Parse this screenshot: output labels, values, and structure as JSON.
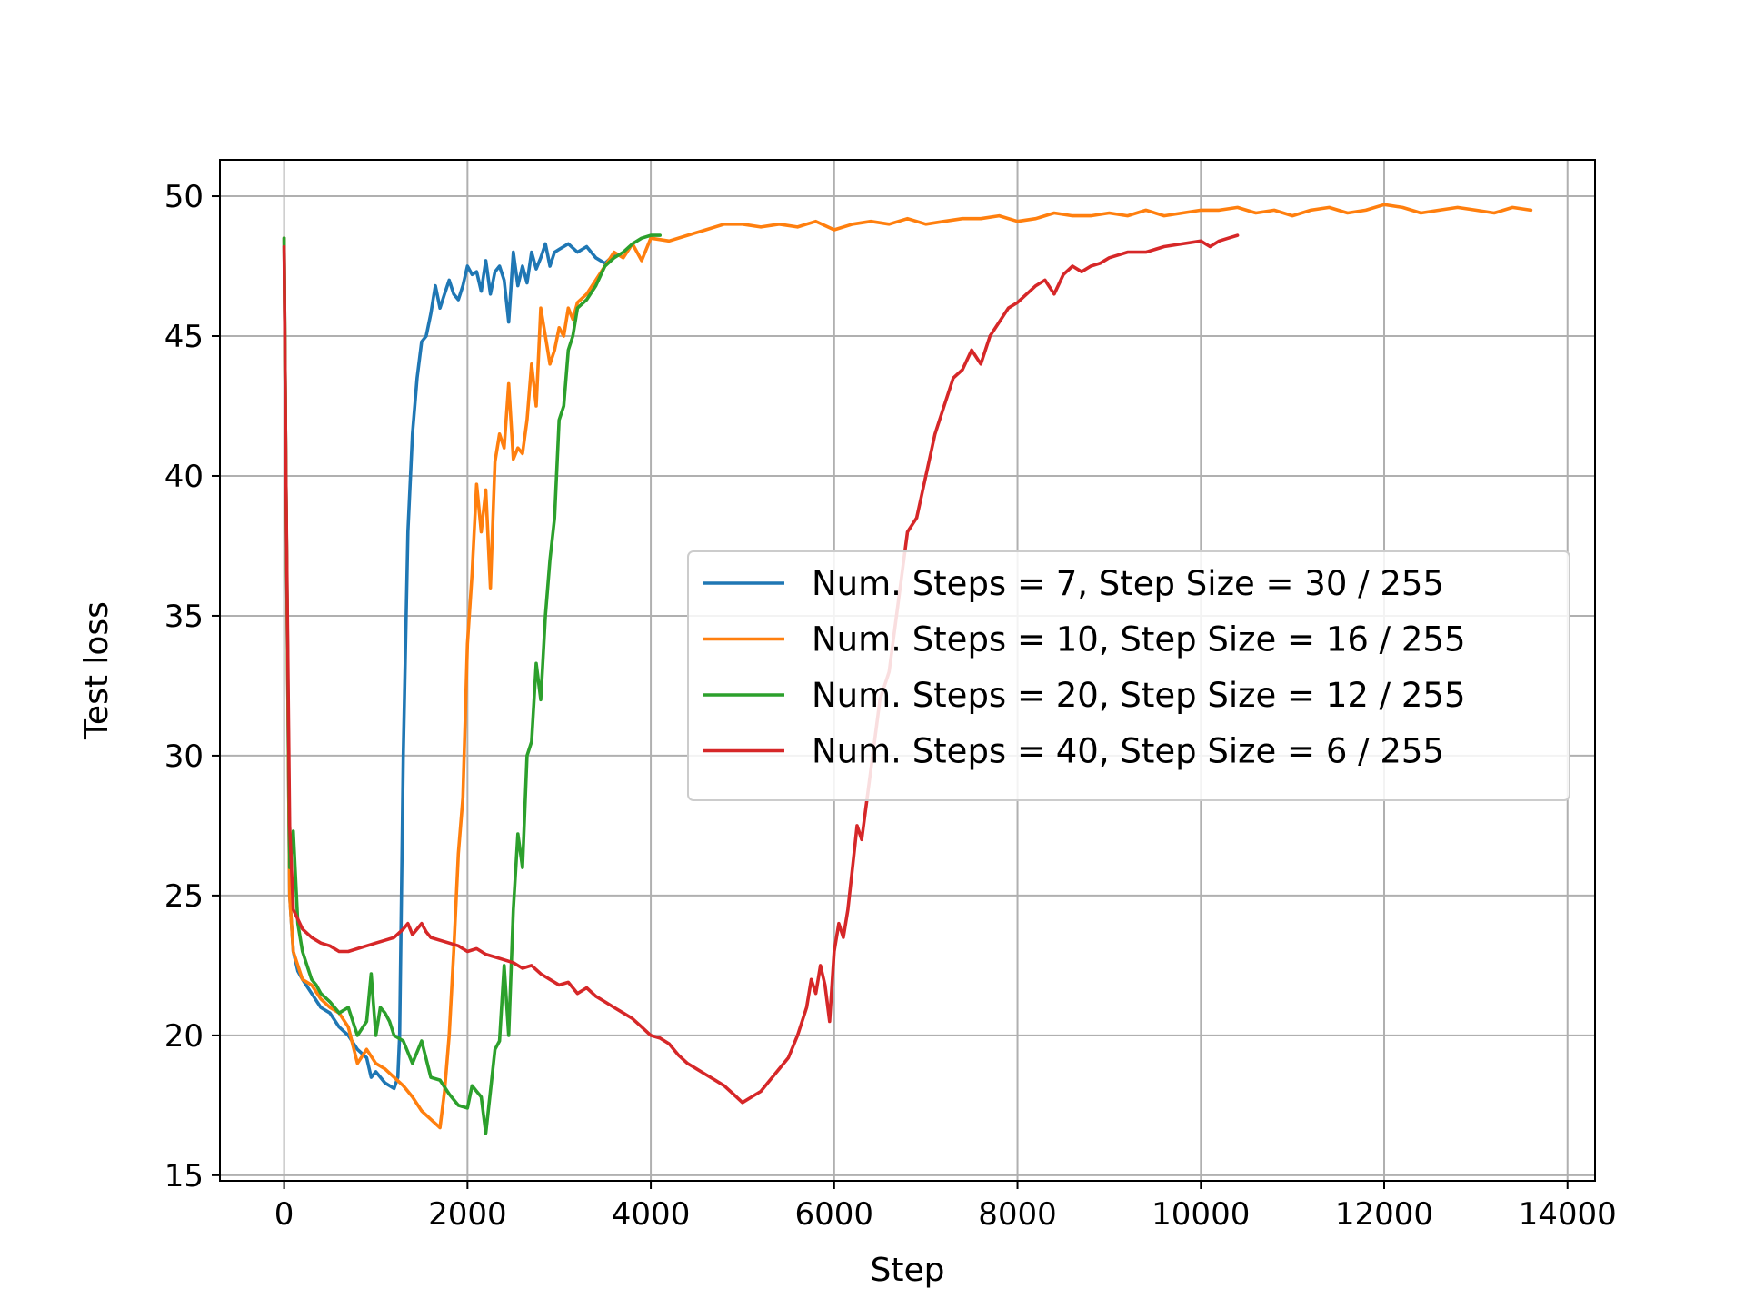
{
  "chart_data": {
    "type": "line",
    "title": "",
    "xlabel": "Step",
    "ylabel": "Test loss",
    "xlim": [
      -700,
      14300
    ],
    "ylim": [
      14.8,
      51.3
    ],
    "xticks": [
      0,
      2000,
      4000,
      6000,
      8000,
      10000,
      12000,
      14000
    ],
    "yticks": [
      15,
      20,
      25,
      30,
      35,
      40,
      45,
      50
    ],
    "xtick_labels": [
      "0",
      "2000",
      "4000",
      "6000",
      "8000",
      "10000",
      "12000",
      "14000"
    ],
    "ytick_labels": [
      "15",
      "20",
      "25",
      "30",
      "35",
      "40",
      "45",
      "50"
    ],
    "grid": true,
    "legend_position": "center-right",
    "series": [
      {
        "name": "Num. Steps = 7, Step Size = 30 / 255",
        "color": "#1f77b4",
        "x": [
          0,
          20,
          60,
          100,
          150,
          200,
          300,
          400,
          500,
          600,
          700,
          800,
          900,
          950,
          1000,
          1100,
          1200,
          1240,
          1260,
          1300,
          1350,
          1400,
          1450,
          1500,
          1550,
          1600,
          1650,
          1700,
          1750,
          1800,
          1850,
          1900,
          1950,
          2000,
          2050,
          2100,
          2150,
          2200,
          2250,
          2300,
          2350,
          2400,
          2450,
          2500,
          2550,
          2600,
          2650,
          2700,
          2750,
          2800,
          2850,
          2900,
          2950,
          3000,
          3100,
          3200,
          3300,
          3400,
          3500,
          3600
        ],
        "y": [
          48.5,
          40.0,
          25.0,
          23.0,
          22.3,
          22.0,
          21.5,
          21.0,
          20.8,
          20.3,
          20.0,
          19.5,
          19.2,
          18.5,
          18.7,
          18.3,
          18.1,
          18.5,
          20.0,
          30.0,
          38.0,
          41.5,
          43.5,
          44.8,
          45.0,
          45.8,
          46.8,
          46.0,
          46.5,
          47.0,
          46.5,
          46.3,
          46.8,
          47.5,
          47.2,
          47.3,
          46.6,
          47.7,
          46.5,
          47.3,
          47.5,
          47.0,
          45.5,
          48.0,
          46.8,
          47.5,
          46.9,
          48.0,
          47.4,
          47.8,
          48.3,
          47.5,
          48.0,
          48.1,
          48.3,
          48.0,
          48.2,
          47.8,
          47.6,
          47.9
        ]
      },
      {
        "name": "Num. Steps = 10, Step Size = 16 / 255",
        "color": "#ff7f0e",
        "x": [
          0,
          20,
          60,
          100,
          150,
          200,
          300,
          400,
          500,
          600,
          700,
          800,
          900,
          1000,
          1100,
          1200,
          1300,
          1400,
          1500,
          1600,
          1700,
          1750,
          1800,
          1850,
          1900,
          1950,
          2000,
          2050,
          2100,
          2150,
          2200,
          2250,
          2300,
          2350,
          2400,
          2450,
          2500,
          2550,
          2600,
          2650,
          2700,
          2750,
          2800,
          2850,
          2900,
          2950,
          3000,
          3050,
          3100,
          3150,
          3200,
          3300,
          3400,
          3500,
          3600,
          3700,
          3800,
          3900,
          4000,
          4200,
          4400,
          4600,
          4800,
          5000,
          5200,
          5400,
          5600,
          5800,
          6000,
          6200,
          6400,
          6600,
          6800,
          7000,
          7200,
          7400,
          7600,
          7800,
          8000,
          8200,
          8400,
          8600,
          8800,
          9000,
          9200,
          9400,
          9600,
          9800,
          10000,
          10200,
          10400,
          10600,
          10800,
          11000,
          11200,
          11400,
          11600,
          11800,
          12000,
          12200,
          12400,
          12600,
          12800,
          13000,
          13200,
          13400,
          13600
        ],
        "y": [
          48.5,
          40.0,
          25.0,
          23.0,
          22.5,
          22.0,
          21.8,
          21.3,
          21.0,
          20.8,
          20.3,
          19.0,
          19.5,
          19.0,
          18.8,
          18.5,
          18.2,
          17.8,
          17.3,
          17.0,
          16.7,
          18.0,
          20.0,
          23.0,
          26.5,
          28.5,
          34.0,
          36.5,
          39.7,
          38.0,
          39.5,
          36.0,
          40.5,
          41.5,
          41.0,
          43.3,
          40.6,
          41.0,
          40.8,
          42.0,
          44.0,
          42.5,
          46.0,
          45.0,
          44.0,
          44.5,
          45.3,
          45.0,
          46.0,
          45.6,
          46.2,
          46.5,
          47.0,
          47.5,
          48.0,
          47.8,
          48.3,
          47.7,
          48.5,
          48.4,
          48.6,
          48.8,
          49.0,
          49.0,
          48.9,
          49.0,
          48.9,
          49.1,
          48.8,
          49.0,
          49.1,
          49.0,
          49.2,
          49.0,
          49.1,
          49.2,
          49.2,
          49.3,
          49.1,
          49.2,
          49.4,
          49.3,
          49.3,
          49.4,
          49.3,
          49.5,
          49.3,
          49.4,
          49.5,
          49.5,
          49.6,
          49.4,
          49.5,
          49.3,
          49.5,
          49.6,
          49.4,
          49.5,
          49.7,
          49.6,
          49.4,
          49.5,
          49.6,
          49.5,
          49.4,
          49.6,
          49.5
        ]
      },
      {
        "name": "Num. Steps = 20, Step Size = 12 / 255",
        "color": "#2ca02c",
        "x": [
          0,
          20,
          60,
          100,
          150,
          200,
          250,
          300,
          350,
          400,
          500,
          600,
          700,
          800,
          900,
          950,
          1000,
          1050,
          1100,
          1150,
          1200,
          1300,
          1400,
          1500,
          1600,
          1700,
          1800,
          1900,
          2000,
          2050,
          2100,
          2150,
          2200,
          2250,
          2300,
          2350,
          2400,
          2450,
          2500,
          2550,
          2600,
          2650,
          2700,
          2750,
          2800,
          2850,
          2900,
          2950,
          3000,
          3050,
          3100,
          3150,
          3200,
          3300,
          3400,
          3500,
          3600,
          3700,
          3800,
          3900,
          4000,
          4100
        ],
        "y": [
          48.5,
          40.0,
          26.0,
          27.3,
          24.0,
          23.0,
          22.5,
          22.0,
          21.8,
          21.5,
          21.2,
          20.8,
          21.0,
          20.0,
          20.5,
          22.2,
          20.0,
          21.0,
          20.8,
          20.5,
          20.0,
          19.8,
          19.0,
          19.8,
          18.5,
          18.4,
          17.9,
          17.5,
          17.4,
          18.2,
          18.0,
          17.8,
          16.5,
          18.0,
          19.5,
          19.8,
          22.5,
          20.0,
          24.5,
          27.2,
          26.0,
          30.0,
          30.5,
          33.3,
          32.0,
          35.0,
          37.0,
          38.5,
          42.0,
          42.5,
          44.5,
          45.0,
          46.0,
          46.3,
          46.8,
          47.5,
          47.8,
          48.0,
          48.3,
          48.5,
          48.6,
          48.6
        ]
      },
      {
        "name": "Num. Steps = 40, Step Size = 6 / 255",
        "color": "#d62728",
        "x": [
          0,
          20,
          60,
          100,
          200,
          300,
          400,
          500,
          600,
          700,
          800,
          900,
          1000,
          1100,
          1200,
          1300,
          1350,
          1400,
          1450,
          1500,
          1550,
          1600,
          1700,
          1800,
          1900,
          2000,
          2100,
          2200,
          2300,
          2400,
          2500,
          2600,
          2700,
          2800,
          2900,
          3000,
          3100,
          3200,
          3300,
          3400,
          3500,
          3600,
          3700,
          3800,
          3900,
          4000,
          4100,
          4200,
          4300,
          4400,
          4500,
          4600,
          4700,
          4800,
          4900,
          5000,
          5100,
          5200,
          5300,
          5400,
          5500,
          5600,
          5700,
          5750,
          5800,
          5850,
          5900,
          5950,
          6000,
          6050,
          6100,
          6150,
          6200,
          6250,
          6300,
          6400,
          6500,
          6600,
          6700,
          6800,
          6900,
          7000,
          7100,
          7200,
          7300,
          7400,
          7500,
          7600,
          7700,
          7800,
          7900,
          8000,
          8100,
          8200,
          8300,
          8400,
          8500,
          8600,
          8700,
          8800,
          8900,
          9000,
          9200,
          9400,
          9600,
          9800,
          10000,
          10100,
          10200,
          10300,
          10400
        ],
        "y": [
          48.2,
          40.0,
          27.5,
          24.5,
          23.8,
          23.5,
          23.3,
          23.2,
          23.0,
          23.0,
          23.1,
          23.2,
          23.3,
          23.4,
          23.5,
          23.8,
          24.0,
          23.6,
          23.8,
          24.0,
          23.7,
          23.5,
          23.4,
          23.3,
          23.2,
          23.0,
          23.1,
          22.9,
          22.8,
          22.7,
          22.6,
          22.4,
          22.5,
          22.2,
          22.0,
          21.8,
          21.9,
          21.5,
          21.7,
          21.4,
          21.2,
          21.0,
          20.8,
          20.6,
          20.3,
          20.0,
          19.9,
          19.7,
          19.3,
          19.0,
          18.8,
          18.6,
          18.4,
          18.2,
          17.9,
          17.6,
          17.8,
          18.0,
          18.4,
          18.8,
          19.2,
          20.0,
          21.0,
          22.0,
          21.5,
          22.5,
          21.8,
          20.5,
          23.0,
          24.0,
          23.5,
          24.5,
          26.0,
          27.5,
          27.0,
          29.5,
          32.0,
          33.0,
          35.5,
          38.0,
          38.5,
          40.0,
          41.5,
          42.5,
          43.5,
          43.8,
          44.5,
          44.0,
          45.0,
          45.5,
          46.0,
          46.2,
          46.5,
          46.8,
          47.0,
          46.5,
          47.2,
          47.5,
          47.3,
          47.5,
          47.6,
          47.8,
          48.0,
          48.0,
          48.2,
          48.3,
          48.4,
          48.2,
          48.4,
          48.5,
          48.6
        ]
      }
    ]
  }
}
